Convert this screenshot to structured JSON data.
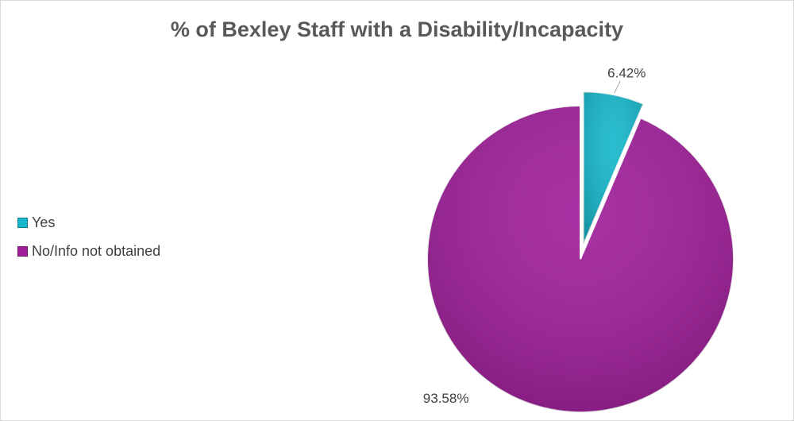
{
  "chart_data": {
    "type": "pie",
    "title": "% of Bexley Staff with a Disability/Incapacity",
    "slices": [
      {
        "label": "Yes",
        "value": 6.42,
        "data_label": "6.42%",
        "color": "#17B8CC",
        "exploded": true
      },
      {
        "label": "No/Info not obtained",
        "value": 93.58,
        "data_label": "93.58%",
        "color": "#A01F9A",
        "exploded": false
      }
    ],
    "start_angle": "12 o'clock, clockwise",
    "legend_position": "left"
  }
}
